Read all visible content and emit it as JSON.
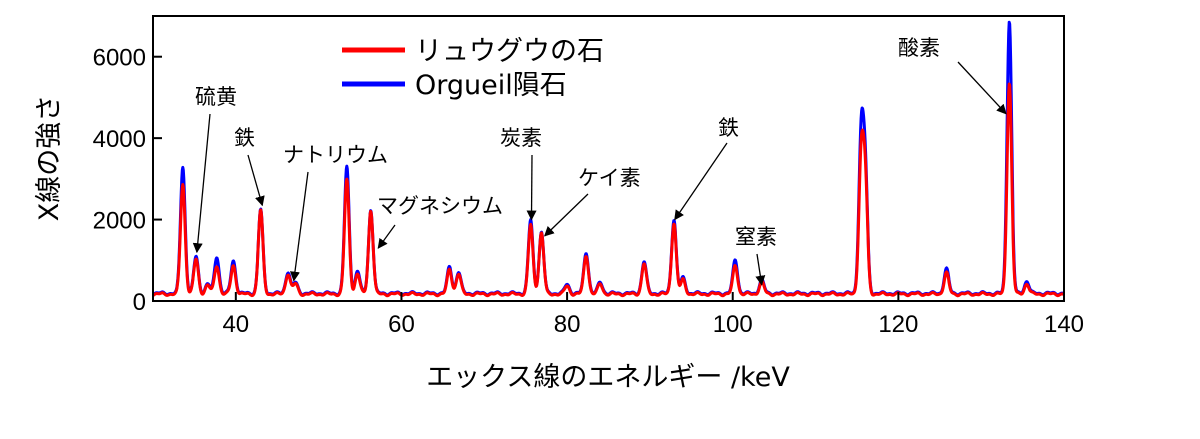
{
  "chart_data": {
    "type": "line",
    "xlabel": "エックス線のエネルギー /keV",
    "ylabel": "X線の強さ",
    "xlim": [
      30,
      140
    ],
    "ylim": [
      0,
      7000
    ],
    "x_ticks": [
      40,
      60,
      80,
      100,
      120,
      140
    ],
    "y_ticks": [
      0,
      2000,
      4000,
      6000
    ],
    "grid": false,
    "legend_position": "top-left",
    "series": [
      {
        "name": "リュウグウの石",
        "color": "#ff0000",
        "baseline": 170,
        "peaks": [
          [
            33.6,
            2700
          ],
          [
            35.2,
            850
          ],
          [
            36.6,
            220
          ],
          [
            37.7,
            700
          ],
          [
            39.7,
            700
          ],
          [
            43.0,
            2050
          ],
          [
            46.3,
            500
          ],
          [
            47.2,
            250
          ],
          [
            53.4,
            2800
          ],
          [
            54.7,
            500
          ],
          [
            56.3,
            2050
          ],
          [
            65.8,
            600
          ],
          [
            66.9,
            500
          ],
          [
            75.6,
            1700
          ],
          [
            76.9,
            1500
          ],
          [
            80.0,
            200
          ],
          [
            82.3,
            950
          ],
          [
            84.0,
            250
          ],
          [
            89.3,
            750
          ],
          [
            92.9,
            1750
          ],
          [
            94.0,
            350
          ],
          [
            100.3,
            700
          ],
          [
            103.5,
            300
          ],
          [
            115.5,
            3200
          ],
          [
            116.0,
            2700
          ],
          [
            125.8,
            520
          ],
          [
            133.4,
            5200
          ],
          [
            135.5,
            250
          ]
        ]
      },
      {
        "name": "Orgueil隕石",
        "color": "#0000ff",
        "baseline": 190,
        "peaks": [
          [
            33.6,
            3100
          ],
          [
            35.2,
            900
          ],
          [
            36.6,
            230
          ],
          [
            37.7,
            900
          ],
          [
            39.7,
            800
          ],
          [
            43.0,
            2050
          ],
          [
            46.3,
            530
          ],
          [
            47.2,
            260
          ],
          [
            53.4,
            3100
          ],
          [
            54.7,
            550
          ],
          [
            56.3,
            2050
          ],
          [
            65.8,
            650
          ],
          [
            66.9,
            520
          ],
          [
            75.6,
            1800
          ],
          [
            76.9,
            1500
          ],
          [
            80.0,
            220
          ],
          [
            82.3,
            1000
          ],
          [
            84.0,
            270
          ],
          [
            89.3,
            780
          ],
          [
            92.9,
            1820
          ],
          [
            94.0,
            380
          ],
          [
            100.3,
            820
          ],
          [
            103.5,
            320
          ],
          [
            115.5,
            3700
          ],
          [
            116.0,
            2900
          ],
          [
            125.8,
            600
          ],
          [
            133.4,
            6700
          ],
          [
            135.5,
            300
          ]
        ]
      }
    ],
    "annotations": [
      {
        "text": "硫黄",
        "x": 35.3,
        "y": 1200
      },
      {
        "text": "鉄",
        "x": 43.2,
        "y": 2350
      },
      {
        "text": "ナトリウム",
        "x": 47.0,
        "y": 500
      },
      {
        "text": "マグネシウム",
        "x": 57.2,
        "y": 1300
      },
      {
        "text": "炭素",
        "x": 75.7,
        "y": 2000
      },
      {
        "text": "ケイ素",
        "x": 77.3,
        "y": 1600
      },
      {
        "text": "鉄",
        "x": 93.0,
        "y": 2000
      },
      {
        "text": "窒素",
        "x": 103.5,
        "y": 400
      },
      {
        "text": "酸素",
        "x": 133.0,
        "y": 4600
      }
    ]
  }
}
